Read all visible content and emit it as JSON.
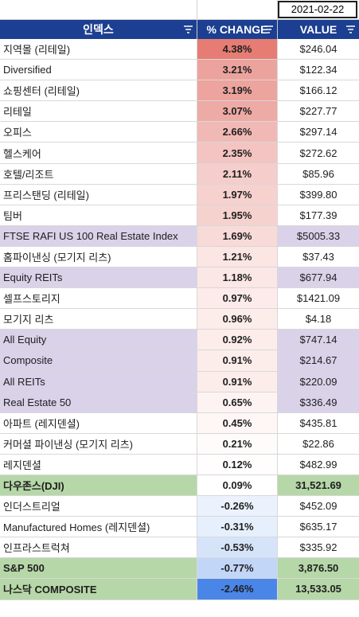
{
  "date": "2021-02-22",
  "header": {
    "name_label": "인덱스",
    "pct_label": "% CHANGE",
    "value_label": "VALUE"
  },
  "colors": {
    "header_bg": "#1c3f91",
    "purple_row": "#d9d2e9",
    "green_row": "#b6d7a8",
    "positive_max": "#e67c73",
    "negative_max": "#4a86e8"
  },
  "icons": {
    "filter": "filter-icon"
  },
  "rows": [
    {
      "name": "지역몰 (리테일)",
      "pct": "4.38%",
      "value": "$246.04",
      "style": "plain",
      "bg": "#e67c73"
    },
    {
      "name": "Diversified",
      "pct": "3.21%",
      "value": "$122.34",
      "style": "plain",
      "bg": "#eda39d"
    },
    {
      "name": "쇼핑센터 (리테일)",
      "pct": "3.19%",
      "value": "$166.12",
      "style": "plain",
      "bg": "#eda49e"
    },
    {
      "name": "리테일",
      "pct": "3.07%",
      "value": "$227.77",
      "style": "plain",
      "bg": "#eeaaa5"
    },
    {
      "name": "오피스",
      "pct": "2.66%",
      "value": "$297.14",
      "style": "plain",
      "bg": "#f1b9b5"
    },
    {
      "name": "헬스케어",
      "pct": "2.35%",
      "value": "$272.62",
      "style": "plain",
      "bg": "#f3c4c1"
    },
    {
      "name": "호텔/리조트",
      "pct": "2.11%",
      "value": "$85.96",
      "style": "plain",
      "bg": "#f5cdca"
    },
    {
      "name": "프리스탠딩 (리테일)",
      "pct": "1.97%",
      "value": "$399.80",
      "style": "plain",
      "bg": "#f6d1ce"
    },
    {
      "name": "팀버",
      "pct": "1.95%",
      "value": "$177.39",
      "style": "plain",
      "bg": "#f6d2cf"
    },
    {
      "name": "FTSE RAFI US 100 Real Estate Index",
      "pct": "1.69%",
      "value": "$5005.33",
      "style": "purple",
      "bg": "#f8dad8"
    },
    {
      "name": "홈파이낸싱 (모기지 리츠)",
      "pct": "1.21%",
      "value": "$37.43",
      "style": "plain",
      "bg": "#fbe6e4"
    },
    {
      "name": "Equity REITs",
      "pct": "1.18%",
      "value": "$677.94",
      "style": "purple",
      "bg": "#fbe7e5"
    },
    {
      "name": "셀프스토리지",
      "pct": "0.97%",
      "value": "$1421.09",
      "style": "plain",
      "bg": "#fcebea"
    },
    {
      "name": "모기지 리츠",
      "pct": "0.96%",
      "value": "$4.18",
      "style": "plain",
      "bg": "#fcecea"
    },
    {
      "name": "All Equity",
      "pct": "0.92%",
      "value": "$747.14",
      "style": "purple",
      "bg": "#fcedeb"
    },
    {
      "name": "Composite",
      "pct": "0.91%",
      "value": "$214.67",
      "style": "purple",
      "bg": "#fcedeb"
    },
    {
      "name": "All REITs",
      "pct": "0.91%",
      "value": "$220.09",
      "style": "purple",
      "bg": "#fcedeb"
    },
    {
      "name": "Real Estate 50",
      "pct": "0.65%",
      "value": "$336.49",
      "style": "purple",
      "bg": "#fdf3f2"
    },
    {
      "name": "아파트 (레지덴셜)",
      "pct": "0.45%",
      "value": "$435.81",
      "style": "plain",
      "bg": "#fef7f6"
    },
    {
      "name": "커머셜 파이낸싱 (모기지 리츠)",
      "pct": "0.21%",
      "value": "$22.86",
      "style": "plain",
      "bg": "#fefcfb"
    },
    {
      "name": "레지덴셜",
      "pct": "0.12%",
      "value": "$482.99",
      "style": "plain",
      "bg": "#fffdfd"
    },
    {
      "name": "다우존스(DJI)",
      "pct": "0.09%",
      "value": "31,521.69",
      "style": "green",
      "bg": "#ffffff"
    },
    {
      "name": "인더스트리얼",
      "pct": "-0.26%",
      "value": "$452.09",
      "style": "plain",
      "bg": "#ebf2fd"
    },
    {
      "name": "Manufactured Homes (레지덴셜)",
      "pct": "-0.31%",
      "value": "$635.17",
      "style": "plain",
      "bg": "#e6effc"
    },
    {
      "name": "인프라스트럭쳐",
      "pct": "-0.53%",
      "value": "$335.92",
      "style": "plain",
      "bg": "#d6e4fa"
    },
    {
      "name": "S&P 500",
      "pct": "-0.77%",
      "value": "3,876.50",
      "style": "green",
      "bg": "#c2d6f7"
    },
    {
      "name": "나스닥 COMPOSITE",
      "pct": "-2.46%",
      "value": "13,533.05",
      "style": "green",
      "bg": "#4a86e8"
    }
  ]
}
